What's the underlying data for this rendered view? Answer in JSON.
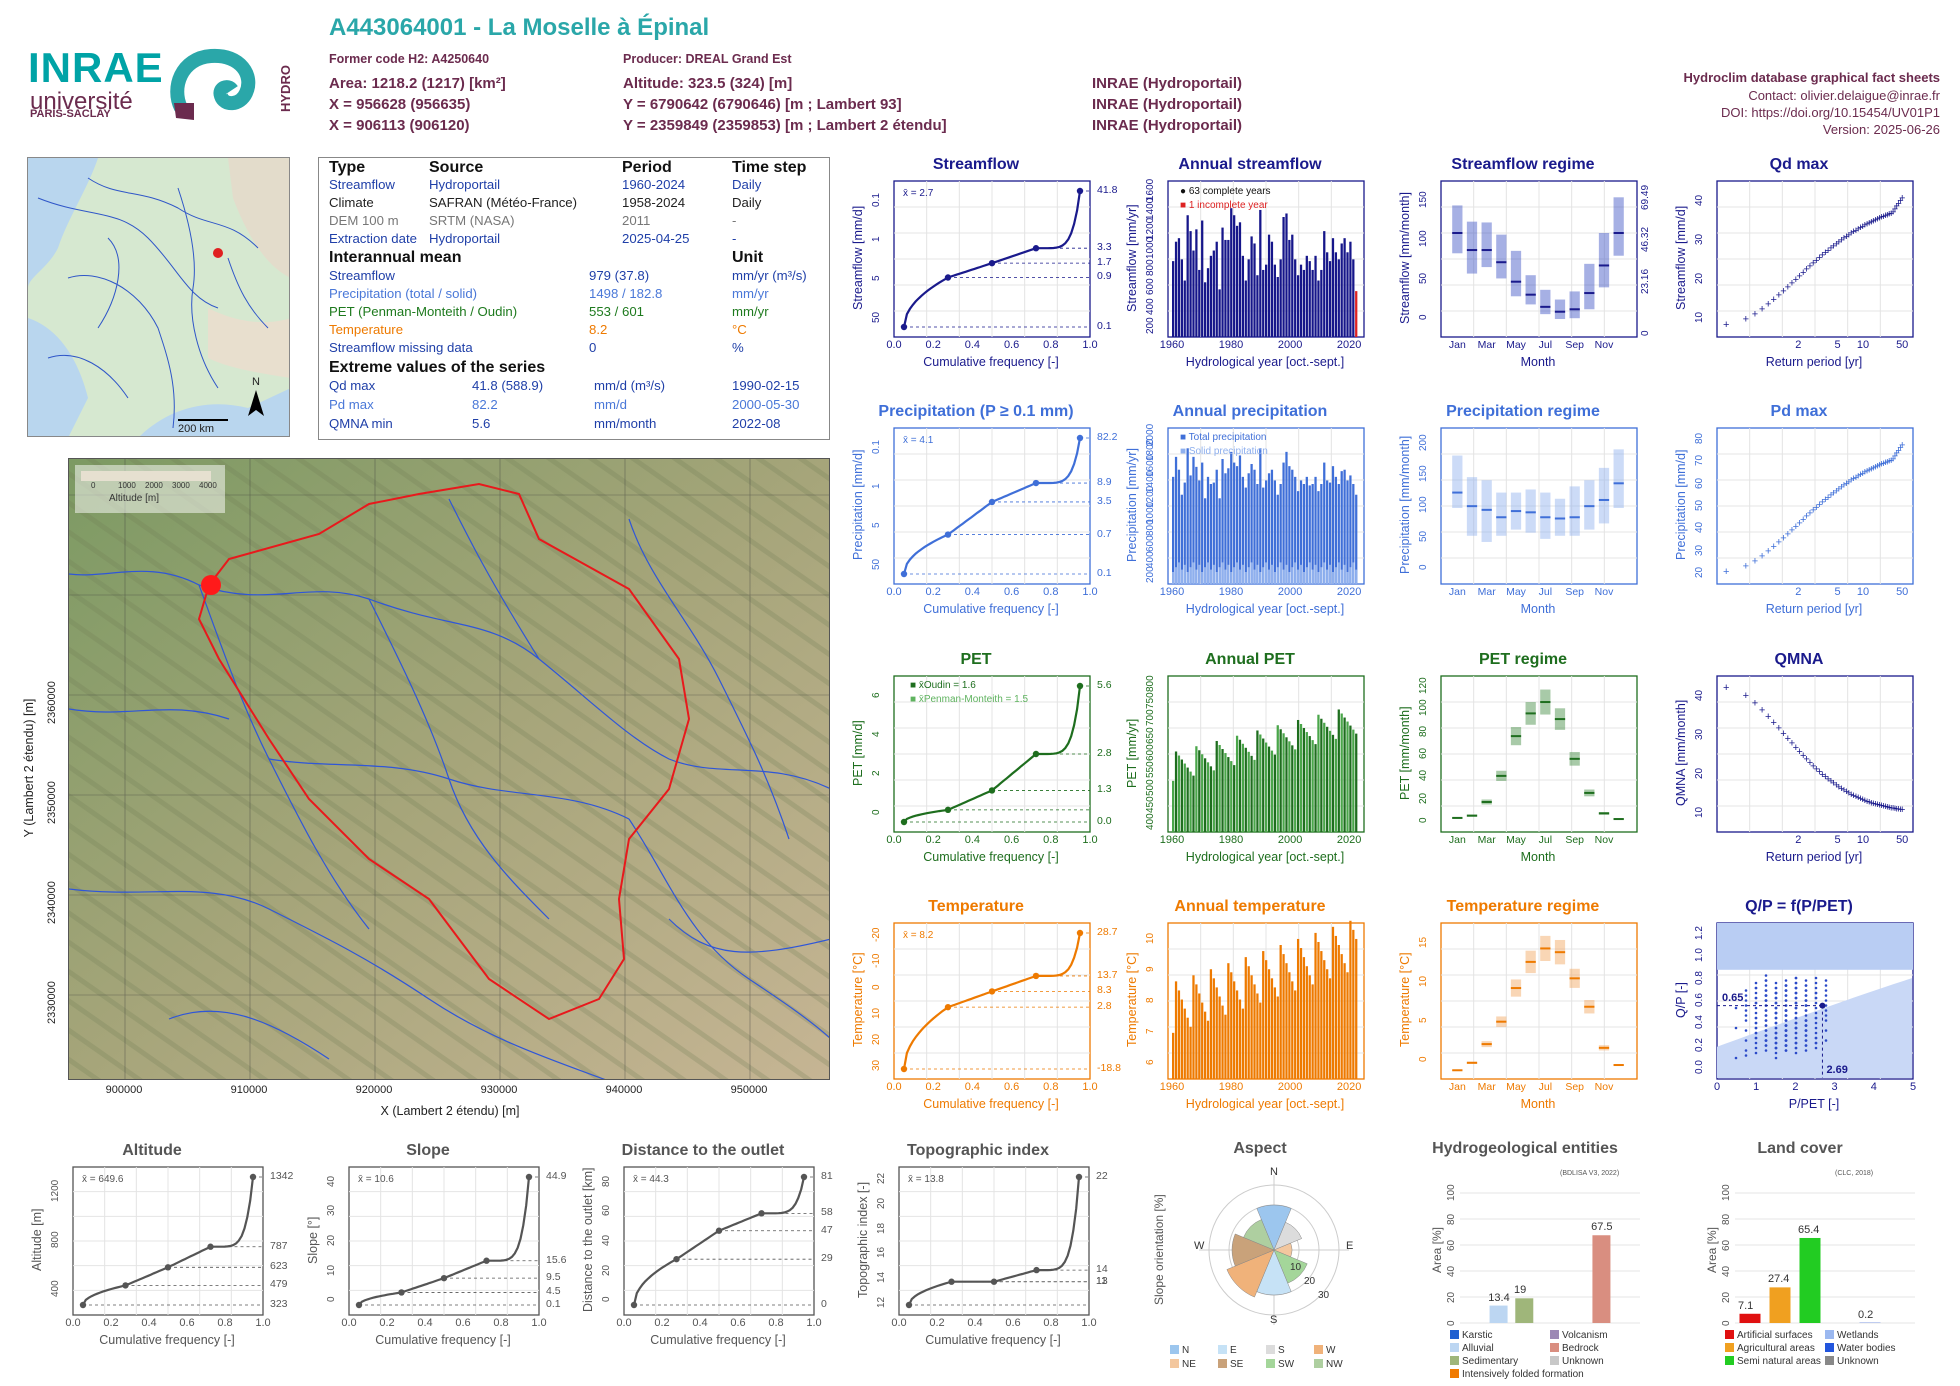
{
  "header": {
    "title": "A443064001 - La Moselle à Épinal",
    "former_code": "Former code H2: A4250640",
    "producer": "Producer: DREAL Grand Est",
    "area": "Area: 1218.2 (1217) [km²]",
    "altitude": "Altitude: 323.5 (324) [m]",
    "x_coord": "X = 956628 (956635)",
    "y_coord": "Y = 6790642 (6790646) [m ; Lambert 93]",
    "x2_coord": "X = 906113 (906120)",
    "y2_coord": "Y = 2359849 (2359853) [m ; Lambert 2 étendu]",
    "src1": "INRAE (Hydroportail)",
    "src2": "INRAE (Hydroportail)",
    "src3": "INRAE (Hydroportail)",
    "right_title": "Hydroclim database graphical fact sheets",
    "contact": "Contact: olivier.delaigue@inrae.fr",
    "doi": "DOI: https://doi.org/10.15454/UV01P1",
    "version": "Version: 2025-06-26"
  },
  "logos": {
    "inrae": "INRAE",
    "univ": "université",
    "ps": "PARIS-SACLAY",
    "hydro": "HYDRO"
  },
  "inset": {
    "scale": "200 km",
    "north": "N"
  },
  "info_table": {
    "headers": [
      "Type",
      "Source",
      "Period",
      "Time step"
    ],
    "rows": [
      {
        "type": "Streamflow",
        "source": "Hydroportail",
        "period": "1960-2024",
        "step": "Daily",
        "color": "#1f3fa8"
      },
      {
        "type": "Climate",
        "source": "SAFRAN (Météo-France)",
        "period": "1958-2024",
        "step": "Daily",
        "color": "#222222"
      },
      {
        "type": "DEM 100 m",
        "source": "SRTM (NASA)",
        "period": "2011",
        "step": "-",
        "color": "#777777"
      },
      {
        "type": "Extraction date",
        "source": "Hydroportail",
        "period": "2025-04-25",
        "step": "-",
        "color": "#1f3fa8"
      }
    ],
    "interannual_title": "Interannual mean",
    "unit_title": "Unit",
    "interannual": [
      {
        "label": "Streamflow",
        "value": "979 (37.8)",
        "unit": "mm/yr (m³/s)",
        "color": "#1f3fa8"
      },
      {
        "label": "Precipitation (total / solid)",
        "value": "1498 / 182.8",
        "unit": "mm/yr",
        "color": "#4a78d8"
      },
      {
        "label": "PET (Penman-Monteith / Oudin)",
        "value": "553 / 601",
        "unit": "mm/yr",
        "color": "#1e7a1e"
      },
      {
        "label": "Temperature",
        "value": "8.2",
        "unit": "°C",
        "color": "#ee7a00"
      },
      {
        "label": "Streamflow missing data",
        "value": "0",
        "unit": "%",
        "color": "#1f3fa8"
      }
    ],
    "extreme_title": "Extreme values of the series",
    "extremes": [
      {
        "label": "Qd max",
        "value": "41.8 (588.9)",
        "unit": "mm/d (m³/s)",
        "date": "1990-02-15",
        "color": "#1f3fa8"
      },
      {
        "label": "Pd max",
        "value": "82.2",
        "unit": "mm/d",
        "date": "2000-05-30",
        "color": "#4a78d8"
      },
      {
        "label": "QMNA min",
        "value": "5.6",
        "unit": "mm/month",
        "date": "2022-08",
        "color": "#1f3fa8"
      }
    ]
  },
  "main_map": {
    "xlabel": "X (Lambert 2 étendu) [m]",
    "ylabel": "Y (Lambert 2 étendu) [m]",
    "xticks": [
      "900000",
      "910000",
      "920000",
      "930000",
      "940000",
      "950000"
    ],
    "yticks": [
      "2330000",
      "2340000",
      "2350000",
      "2360000"
    ],
    "legend_title": "Altitude [m]",
    "legend_ticks": [
      "0",
      "1000",
      "2000",
      "3000",
      "4000"
    ]
  },
  "colors": {
    "streamflow": "#1a1a8c",
    "precip": "#3f6fd8",
    "pet": "#1e6e1e",
    "temp": "#ee7a00",
    "topo": "#555555"
  },
  "panels": {
    "streamflow_cdf": {
      "title": "Streamflow",
      "ylabel": "Streamflow [mm/d]",
      "xlabel": "Cumulative frequency [-]",
      "mean": "x̄ = 2.7",
      "right_ticks": [
        "41.8",
        "3.3",
        "1.7",
        "0.9",
        "0.1"
      ],
      "left_ticks": [
        "50",
        "5",
        "1",
        "0.1"
      ]
    },
    "annual_streamflow": {
      "title": "Annual streamflow",
      "ylabel": "Streamflow [mm/yr]",
      "xlabel": "Hydrological year [oct.-sept.]",
      "leg1": "63 complete years",
      "leg2": "1 incomplete year",
      "yticks": [
        "200",
        "400",
        "600",
        "800",
        "1000",
        "1200",
        "1400",
        "1600"
      ]
    },
    "streamflow_regime": {
      "title": "Streamflow regime",
      "ylabel": "Streamflow [mm/month]",
      "xlabel": "Month",
      "right_ticks": [
        "0",
        "23.16",
        "46.32",
        "69.49"
      ],
      "yticks": [
        "0",
        "50",
        "100",
        "150"
      ]
    },
    "qd_max": {
      "title": "Qd max",
      "ylabel": "Streamflow [mm/d]",
      "xlabel": "Return period [yr]",
      "yticks": [
        "10",
        "20",
        "30",
        "40"
      ]
    },
    "precip_cdf": {
      "title": "Precipitation (P ≥ 0.1 mm)",
      "ylabel": "Precipitation [mm/d]",
      "xlabel": "Cumulative frequency [-]",
      "mean": "x̄ = 4.1",
      "right_ticks": [
        "82.2",
        "8.9",
        "3.5",
        "0.7",
        "0.1"
      ],
      "left_ticks": [
        "50",
        "5",
        "1",
        "0.1"
      ]
    },
    "annual_precip": {
      "title": "Annual precipitation",
      "ylabel": "Precipitation [mm/yr]",
      "xlabel": "Hydrological year [oct.-sept.]",
      "leg1": "Total precipitation",
      "leg2": "Solid precipitation",
      "yticks": [
        "200",
        "400",
        "600",
        "800",
        "1000",
        "1200",
        "1400",
        "1600",
        "1800",
        "2000"
      ]
    },
    "precip_regime": {
      "title": "Precipitation regime",
      "ylabel": "Precipitation [mm/month]",
      "xlabel": "Month",
      "yticks": [
        "0",
        "50",
        "100",
        "150",
        "200"
      ]
    },
    "pd_max": {
      "title": "Pd max",
      "ylabel": "Precipitation [mm/d]",
      "xlabel": "Return period [yr]",
      "yticks": [
        "20",
        "30",
        "40",
        "50",
        "60",
        "70",
        "80"
      ]
    },
    "pet_cdf": {
      "title": "PET",
      "ylabel": "PET [mm/d]",
      "xlabel": "Cumulative frequency [-]",
      "mean1": "x̄Oudin = 1.6",
      "mean2": "x̄Penman-Monteith = 1.5",
      "right_ticks": [
        "5.6",
        "2.8",
        "1.3",
        "0.0"
      ],
      "left_ticks": [
        "0",
        "2",
        "4",
        "6"
      ]
    },
    "annual_pet": {
      "title": "Annual PET",
      "ylabel": "PET [mm/yr]",
      "xlabel": "Hydrological year [oct.-sept.]",
      "yticks": [
        "400",
        "450",
        "500",
        "550",
        "600",
        "650",
        "700",
        "750",
        "800"
      ]
    },
    "pet_regime": {
      "title": "PET regime",
      "ylabel": "PET [mm/month]",
      "xlabel": "Month",
      "yticks": [
        "0",
        "20",
        "40",
        "60",
        "80",
        "100",
        "120"
      ]
    },
    "qmna": {
      "title": "QMNA",
      "ylabel": "QMNA [mm/month]",
      "xlabel": "Return period [yr]",
      "yticks": [
        "10",
        "20",
        "30",
        "40"
      ]
    },
    "temp_cdf": {
      "title": "Temperature",
      "ylabel": "Temperature [°C]",
      "xlabel": "Cumulative frequency [-]",
      "mean": "x̄ = 8.2",
      "right_ticks": [
        "28.7",
        "13.7",
        "8.3",
        "2.8",
        "-18.8"
      ],
      "left_ticks": [
        "30",
        "20",
        "10",
        "0",
        "-10",
        "-20"
      ]
    },
    "annual_temp": {
      "title": "Annual temperature",
      "ylabel": "Temperature [°C]",
      "xlabel": "Hydrological year [oct.-sept.]",
      "yticks": [
        "6",
        "7",
        "8",
        "9",
        "10"
      ]
    },
    "temp_regime": {
      "title": "Temperature regime",
      "ylabel": "Temperature [°C]",
      "xlabel": "Month",
      "yticks": [
        "0",
        "5",
        "10",
        "15"
      ]
    },
    "qp": {
      "title": "Q/P = f(P/PET)",
      "ylabel": "Q/P [-]",
      "xlabel": "P/PET [-]",
      "v1": "0.65",
      "v2": "2.69",
      "yticks": [
        "0.0",
        "0.2",
        "0.4",
        "0.6",
        "0.8",
        "1.0",
        "1.2"
      ],
      "xticks": [
        "0",
        "1",
        "2",
        "3",
        "4",
        "5"
      ]
    },
    "altitude": {
      "title": "Altitude",
      "ylabel": "Altitude [m]",
      "xlabel": "Cumulative frequency [-]",
      "mean": "x̄ = 649.6",
      "right_ticks": [
        "1342",
        "787",
        "623",
        "479",
        "323"
      ],
      "left_ticks": [
        "400",
        "800",
        "1200"
      ]
    },
    "slope": {
      "title": "Slope",
      "ylabel": "Slope [°]",
      "xlabel": "Cumulative frequency [-]",
      "mean": "x̄ = 10.6",
      "right_ticks": [
        "44.9",
        "15.6",
        "9.5",
        "4.5",
        "0.1"
      ],
      "left_ticks": [
        "0",
        "10",
        "20",
        "30",
        "40"
      ]
    },
    "distance": {
      "title": "Distance to the outlet",
      "ylabel": "Distance to the outlet [km]",
      "xlabel": "Cumulative frequency [-]",
      "mean": "x̄ = 44.3",
      "right_ticks": [
        "81",
        "58",
        "47",
        "29",
        "0"
      ],
      "left_ticks": [
        "0",
        "20",
        "40",
        "60",
        "80"
      ]
    },
    "topo": {
      "title": "Topographic index",
      "ylabel": "Topographic index [-]",
      "xlabel": "Cumulative frequency [-]",
      "mean": "x̄ = 13.8",
      "right_ticks": [
        "22",
        "14",
        "13",
        "11"
      ],
      "left_ticks": [
        "12",
        "14",
        "16",
        "18",
        "20",
        "22"
      ]
    },
    "aspect": {
      "title": "Aspect",
      "ylabel": "Slope orientation [%]",
      "dirs": [
        "N",
        "E",
        "S",
        "W"
      ],
      "rings": [
        "10",
        "20",
        "30"
      ],
      "legend": [
        "N",
        "E",
        "S",
        "W",
        "NE",
        "SE",
        "SW",
        "NW"
      ]
    },
    "hydrogeo": {
      "title": "Hydrogeological entities",
      "ylabel": "Area [%]",
      "note": "(BDLISA V3, 2022)",
      "legend": [
        "Karstic",
        "Volcanism",
        "Alluvial",
        "Bedrock",
        "Sedimentary",
        "Unknown",
        "Intensively folded formation"
      ],
      "yticks": [
        "0",
        "20",
        "40",
        "60",
        "80",
        "100"
      ]
    },
    "landcover": {
      "title": "Land cover",
      "ylabel": "Area [%]",
      "note": "(CLC, 2018)",
      "legend": [
        "Artificial surfaces",
        "Wetlands",
        "Agricultural areas",
        "Water bodies",
        "Semi natural areas",
        "Unknown"
      ],
      "yticks": [
        "0",
        "20",
        "40",
        "60",
        "80",
        "100"
      ]
    }
  },
  "axis_common": {
    "cdf_x": [
      "0.0",
      "0.2",
      "0.4",
      "0.6",
      "0.8",
      "1.0"
    ],
    "years": [
      "1960",
      "1980",
      "2000",
      "2020"
    ],
    "months": [
      "Jan",
      "Mar",
      "May",
      "Jul",
      "Sep",
      "Nov"
    ],
    "rp": [
      "2",
      "5",
      "10",
      "50"
    ]
  },
  "chart_data": [
    {
      "type": "line",
      "title": "Streamflow",
      "x": [
        0,
        0.25,
        0.5,
        0.75,
        1.0
      ],
      "y": [
        0.1,
        0.9,
        1.7,
        3.3,
        41.8
      ],
      "log_y": true
    },
    {
      "type": "bar",
      "title": "Annual streamflow",
      "x_range": [
        1960,
        2023
      ],
      "values": [
        860,
        1080,
        1120,
        880,
        640,
        1380,
        1200,
        980,
        1220,
        760,
        1320,
        620,
        780,
        920,
        980,
        1080,
        540,
        1240,
        1100,
        1100,
        1460,
        1380,
        1260,
        1300,
        920,
        640,
        880,
        1140,
        1060,
        700,
        1440,
        760,
        820,
        1160,
        1080,
        820,
        680,
        880,
        1360,
        1400,
        1100,
        1160,
        880,
        700,
        820,
        760,
        920,
        860,
        760,
        920,
        640,
        760,
        1200,
        960,
        860,
        1120,
        960,
        880,
        1060,
        1120,
        960,
        1080,
        880,
        520
      ]
    },
    {
      "type": "bar",
      "title": "Streamflow regime",
      "categories": [
        "Jan",
        "Feb",
        "Mar",
        "Apr",
        "May",
        "Jun",
        "Jul",
        "Aug",
        "Sep",
        "Oct",
        "Nov",
        "Dec"
      ],
      "values": [
        122,
        101,
        101,
        86,
        62,
        46,
        31,
        25,
        28,
        48,
        82,
        122
      ],
      "q_low": [
        97,
        72,
        80,
        66,
        44,
        34,
        22,
        16,
        17,
        28,
        55,
        94
      ],
      "q_high": [
        156,
        136,
        135,
        120,
        100,
        70,
        52,
        40,
        50,
        84,
        122,
        166
      ]
    },
    {
      "type": "scatter",
      "title": "Qd max",
      "x_range": [
        1,
        50
      ],
      "y_range": [
        9,
        42
      ]
    },
    {
      "type": "line",
      "title": "Precipitation (P ≥ 0.1 mm)",
      "x": [
        0,
        0.25,
        0.5,
        0.75,
        1.0
      ],
      "y": [
        0.1,
        0.7,
        3.5,
        8.9,
        82.2
      ],
      "log_y": true
    },
    {
      "type": "bar",
      "title": "Annual precipitation",
      "x_range": [
        1960,
        2023
      ]
    },
    {
      "type": "bar",
      "title": "Precipitation regime",
      "categories": [
        "Jan",
        "Feb",
        "Mar",
        "Apr",
        "May",
        "Jun",
        "Jul",
        "Aug",
        "Sep",
        "Oct",
        "Nov",
        "Dec"
      ],
      "values": [
        140,
        118,
        112,
        100,
        110,
        108,
        100,
        98,
        100,
        118,
        128,
        155
      ],
      "q_low": [
        115,
        70,
        60,
        70,
        80,
        75,
        65,
        70,
        70,
        80,
        90,
        115
      ],
      "q_high": [
        200,
        165,
        160,
        140,
        140,
        145,
        140,
        130,
        150,
        160,
        180,
        210
      ]
    },
    {
      "type": "scatter",
      "title": "Pd max",
      "x_range": [
        1,
        50
      ],
      "y_range": [
        32,
        82
      ]
    },
    {
      "type": "line",
      "title": "PET",
      "x": [
        0,
        0.25,
        0.5,
        0.75,
        1.0
      ],
      "y": [
        0.0,
        0.5,
        1.3,
        2.8,
        5.6
      ]
    },
    {
      "type": "bar",
      "title": "Annual PET",
      "x_range": [
        1960,
        2023
      ],
      "y_range": [
        400,
        800
      ]
    },
    {
      "type": "bar",
      "title": "PET regime",
      "categories": [
        "Jan",
        "Feb",
        "Mar",
        "Apr",
        "May",
        "Jun",
        "Jul",
        "Aug",
        "Sep",
        "Oct",
        "Nov",
        "Dec"
      ],
      "values": [
        8,
        10,
        22,
        45,
        80,
        100,
        110,
        95,
        60,
        30,
        12,
        7
      ]
    },
    {
      "type": "scatter",
      "title": "QMNA",
      "x_range": [
        1,
        50
      ],
      "y_range": [
        5.6,
        42
      ]
    },
    {
      "type": "line",
      "title": "Temperature",
      "x": [
        0,
        0.25,
        0.5,
        0.75,
        1.0
      ],
      "y": [
        -18.8,
        2.8,
        8.3,
        13.7,
        28.7
      ]
    },
    {
      "type": "bar",
      "title": "Annual temperature",
      "x_range": [
        1960,
        2023
      ],
      "y_range": [
        6,
        10.5
      ]
    },
    {
      "type": "bar",
      "title": "Temperature regime",
      "categories": [
        "Jan",
        "Feb",
        "Mar",
        "Apr",
        "May",
        "Jun",
        "Jul",
        "Aug",
        "Sep",
        "Oct",
        "Nov",
        "Dec"
      ],
      "values": [
        0.5,
        1.5,
        4,
        7,
        11.5,
        15,
        16.8,
        16.3,
        12.8,
        9,
        3.5,
        1.2
      ]
    },
    {
      "type": "scatter",
      "title": "Q/P = f(P/PET)",
      "x_range": [
        0,
        5
      ],
      "y_range": [
        0,
        1.4
      ],
      "point": {
        "x": 2.69,
        "y": 0.65
      }
    },
    {
      "type": "line",
      "title": "Altitude",
      "x": [
        0,
        0.25,
        0.5,
        0.75,
        1.0
      ],
      "y": [
        323,
        479,
        623,
        787,
        1342
      ]
    },
    {
      "type": "line",
      "title": "Slope",
      "x": [
        0,
        0.25,
        0.5,
        0.75,
        1.0
      ],
      "y": [
        0.1,
        4.5,
        9.5,
        15.6,
        44.9
      ]
    },
    {
      "type": "line",
      "title": "Distance to the outlet",
      "x": [
        0,
        0.25,
        0.5,
        0.75,
        1.0
      ],
      "y": [
        0,
        29,
        47,
        58,
        81
      ]
    },
    {
      "type": "line",
      "title": "Topographic index",
      "x": [
        0,
        0.25,
        0.5,
        0.75,
        1.0
      ],
      "y": [
        11,
        13,
        13,
        14,
        22
      ]
    },
    {
      "type": "pie",
      "title": "Aspect",
      "categories": [
        "N",
        "NE",
        "E",
        "SE",
        "S",
        "SW",
        "W",
        "NW"
      ],
      "values": [
        15,
        10,
        6,
        12,
        15,
        17,
        14,
        11
      ]
    },
    {
      "type": "bar",
      "title": "Hydrogeological entities",
      "categories": [
        "Karstic",
        "Alluvial",
        "Sedimentary",
        "Intensively folded formation",
        "Volcanism",
        "Bedrock",
        "Unknown"
      ],
      "values": [
        0,
        13.4,
        19,
        0,
        0,
        67.5,
        0
      ]
    },
    {
      "type": "bar",
      "title": "Land cover",
      "categories": [
        "Artificial surfaces",
        "Agricultural areas",
        "Semi natural areas",
        "Wetlands",
        "Water bodies",
        "Unknown"
      ],
      "values": [
        7.1,
        27.4,
        65.4,
        0,
        0.2,
        0
      ]
    }
  ]
}
